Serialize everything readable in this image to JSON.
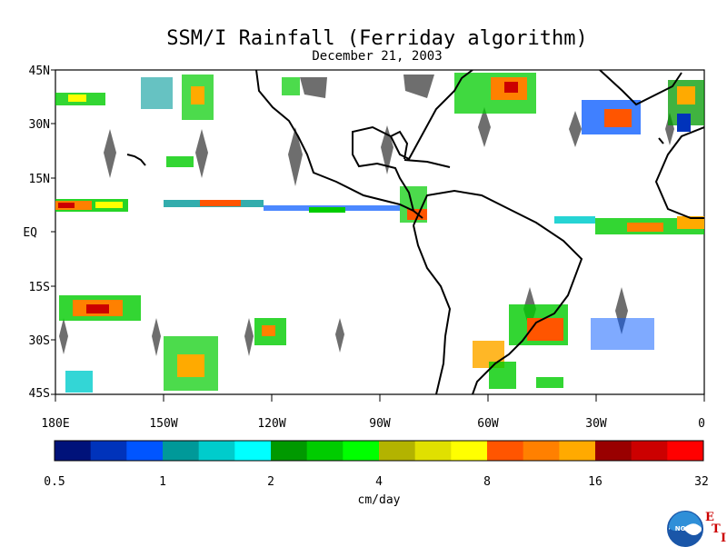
{
  "title": "SSM/I Rainfall (Ferriday algorithm)",
  "date": "December 21, 2003",
  "map": {
    "lon_range": [
      -180,
      0
    ],
    "lat_range": [
      -45,
      45
    ],
    "lat_labels": [
      "45N",
      "30N",
      "15N",
      "EQ",
      "15S",
      "30S",
      "45S"
    ],
    "lon_labels": [
      "180E",
      "150W",
      "120W",
      "90W",
      "60W",
      "30W",
      "0"
    ],
    "land_color": "#ffffff",
    "missing_color": "#6e6e6e",
    "coast_color": "#000000"
  },
  "colorbar": {
    "unit_label": "cm/day",
    "tick_labels": [
      "0.5",
      "1",
      "2",
      "4",
      "8",
      "16",
      "32"
    ],
    "colors": [
      "#00127a",
      "#0033bb",
      "#0055ff",
      "#009999",
      "#00cccc",
      "#00ffff",
      "#009900",
      "#00cc00",
      "#00ff00",
      "#b3b300",
      "#e0e000",
      "#ffff00",
      "#ff5500",
      "#ff8000",
      "#ffaa00",
      "#990000",
      "#cc0000",
      "#ff0000"
    ]
  },
  "logo": {
    "text": "NOAA",
    "eti_letters": [
      "E",
      "T",
      "I"
    ]
  }
}
